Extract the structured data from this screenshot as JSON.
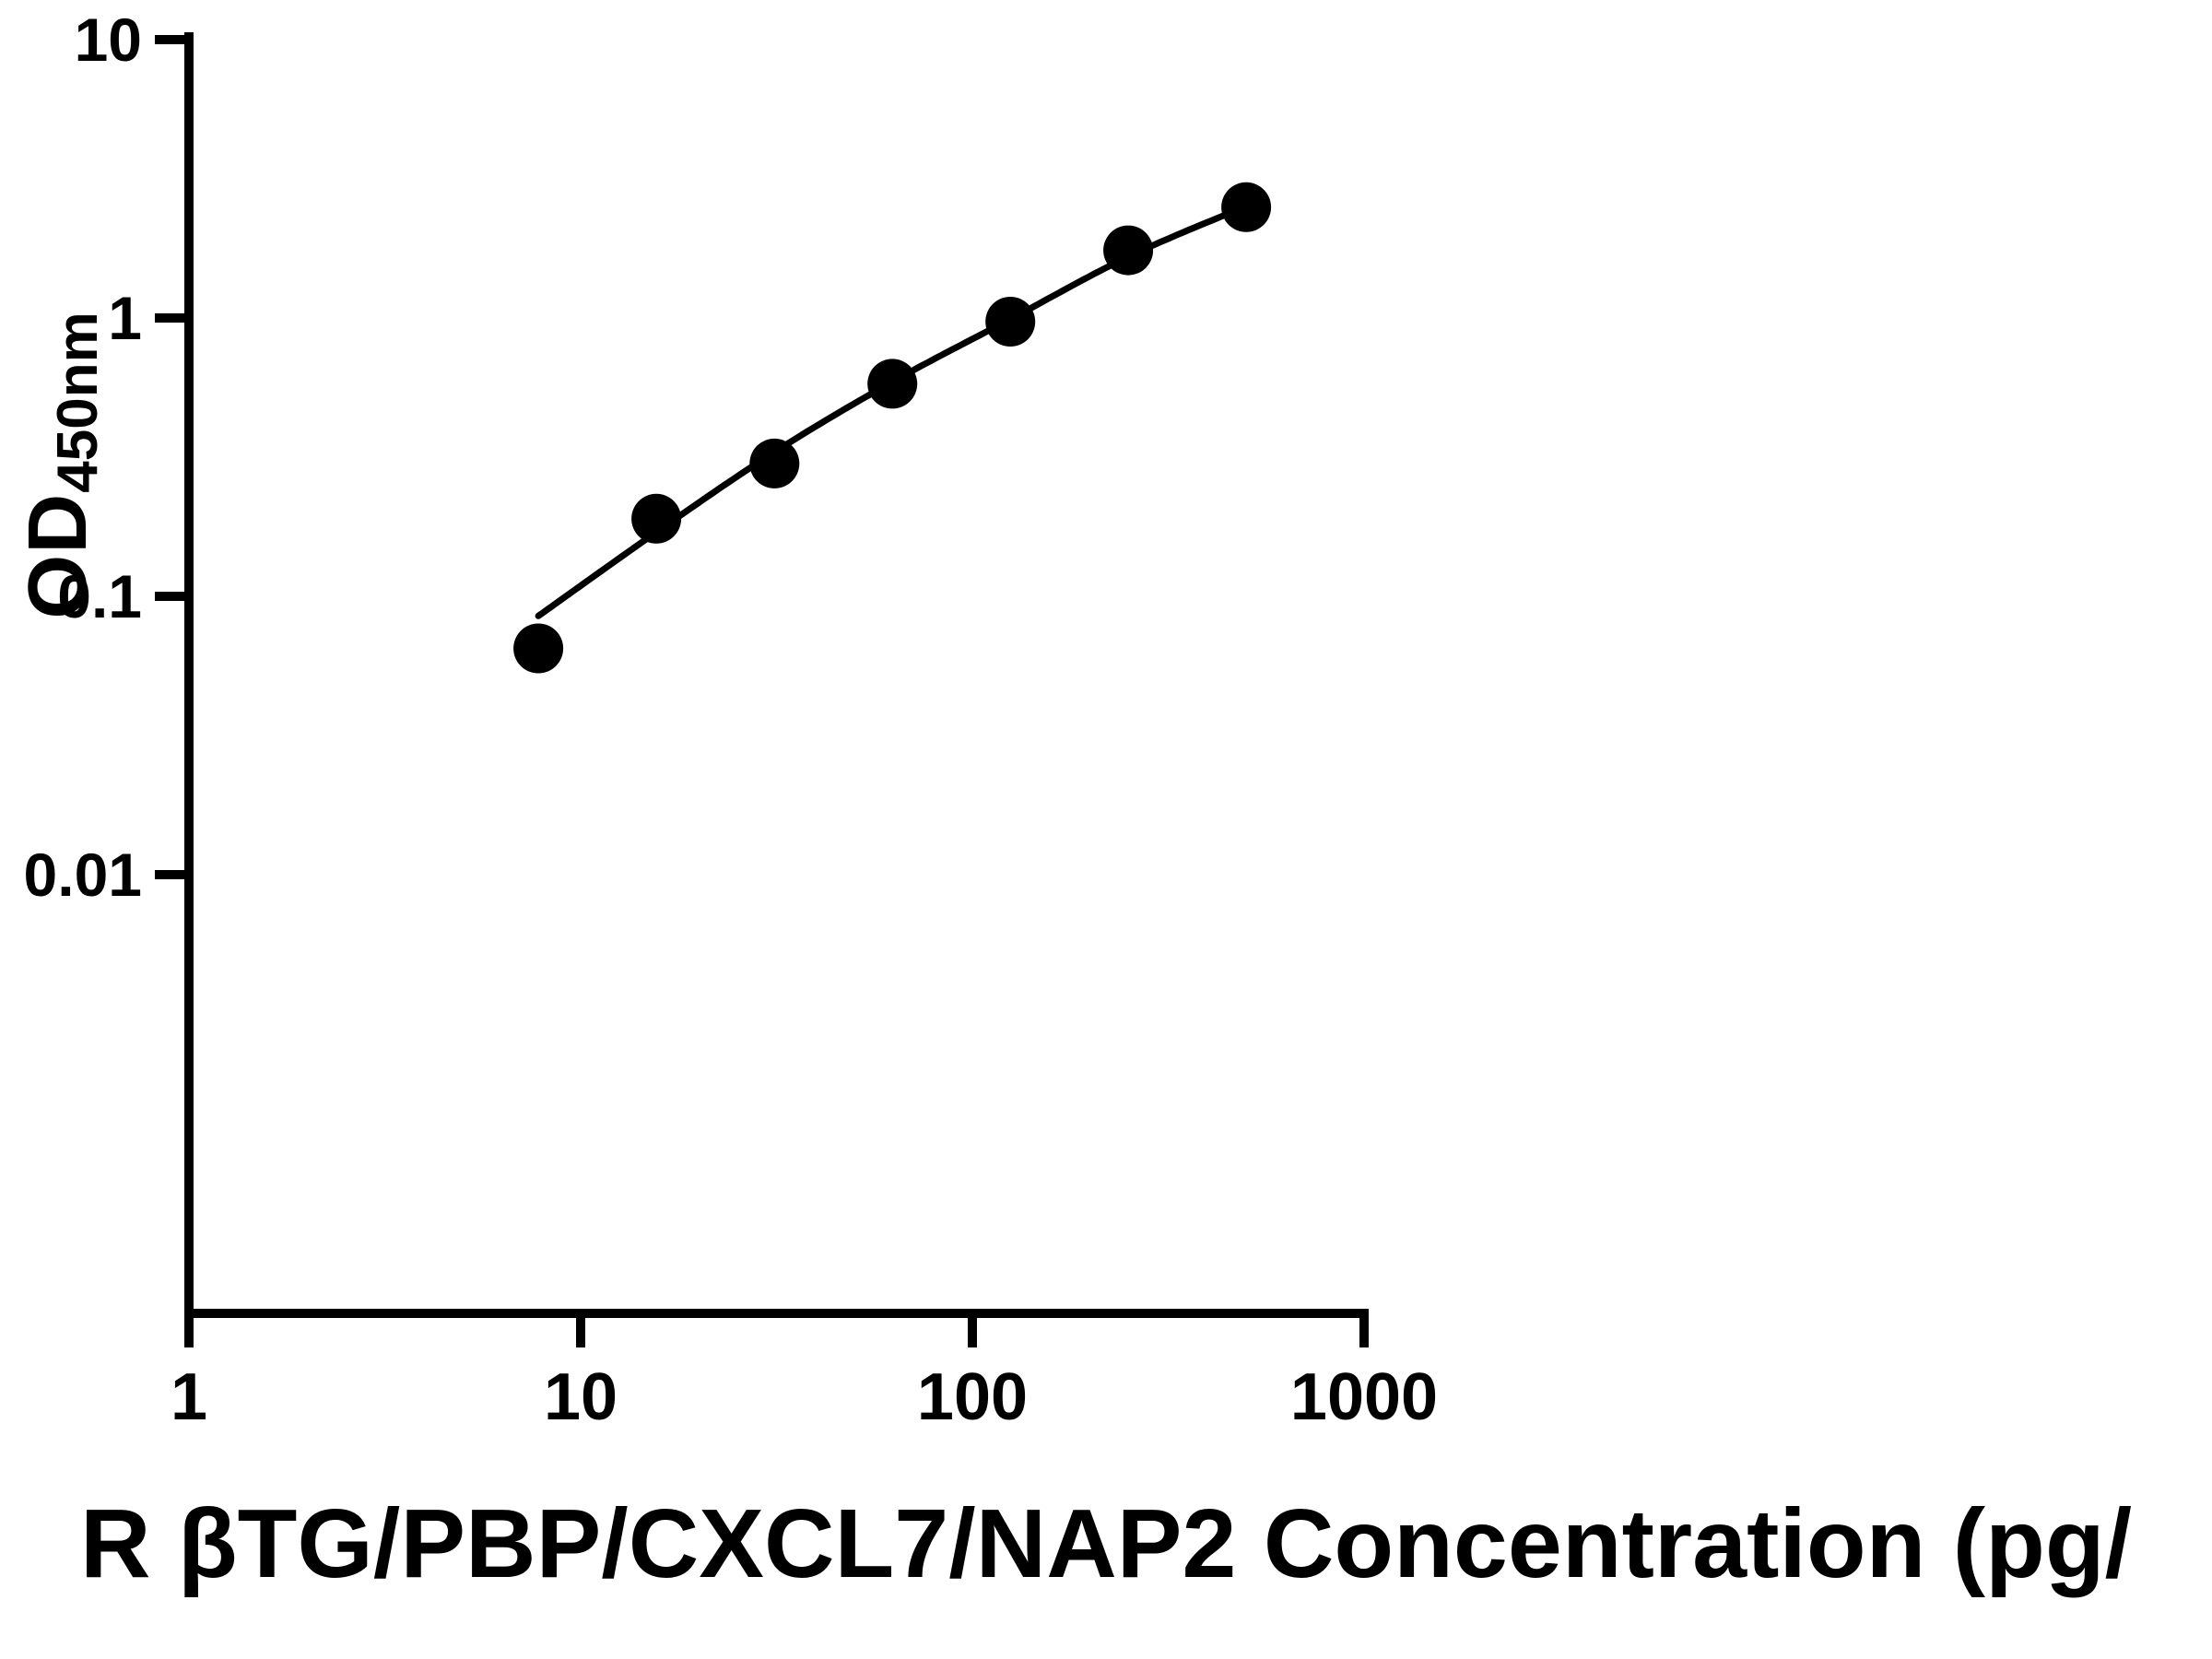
{
  "figure": {
    "background_color": "#ffffff",
    "axis_color": "#000000",
    "marker_color": "#000000",
    "curve_color": "#000000"
  },
  "chart_data": {
    "type": "scatter",
    "title": "",
    "xlabel": "R βTG/PBP/CXCL7/NAP2 Concentration (pg/",
    "ylabel_main": "OD",
    "ylabel_sub": "450nm",
    "x_scale": "log",
    "y_scale": "log",
    "grid": false,
    "legend_position": "none",
    "xlim": [
      1,
      1000
    ],
    "ylim_labeled": [
      0.01,
      10
    ],
    "x_ticks": [
      {
        "value": 1,
        "label": "1"
      },
      {
        "value": 10,
        "label": "10"
      },
      {
        "value": 100,
        "label": "100"
      },
      {
        "value": 1000,
        "label": "1000"
      }
    ],
    "y_ticks": [
      {
        "value": 10,
        "label": "10"
      },
      {
        "value": 1,
        "label": "1"
      },
      {
        "value": 0.1,
        "label": "0.1"
      },
      {
        "value": 0.01,
        "label": "0.01"
      }
    ],
    "series": [
      {
        "name": "standard-curve-points",
        "points": [
          {
            "x": 7.8,
            "y": 0.065
          },
          {
            "x": 15.6,
            "y": 0.19
          },
          {
            "x": 31.25,
            "y": 0.3
          },
          {
            "x": 62.5,
            "y": 0.58
          },
          {
            "x": 125,
            "y": 0.97
          },
          {
            "x": 250,
            "y": 1.75
          },
          {
            "x": 500,
            "y": 2.5
          }
        ]
      }
    ],
    "fit_curve": [
      {
        "x": 7.8,
        "y": 0.085
      },
      {
        "x": 15.6,
        "y": 0.17
      },
      {
        "x": 31.25,
        "y": 0.33
      },
      {
        "x": 62.5,
        "y": 0.59
      },
      {
        "x": 125,
        "y": 0.99
      },
      {
        "x": 250,
        "y": 1.66
      },
      {
        "x": 500,
        "y": 2.52
      }
    ]
  }
}
